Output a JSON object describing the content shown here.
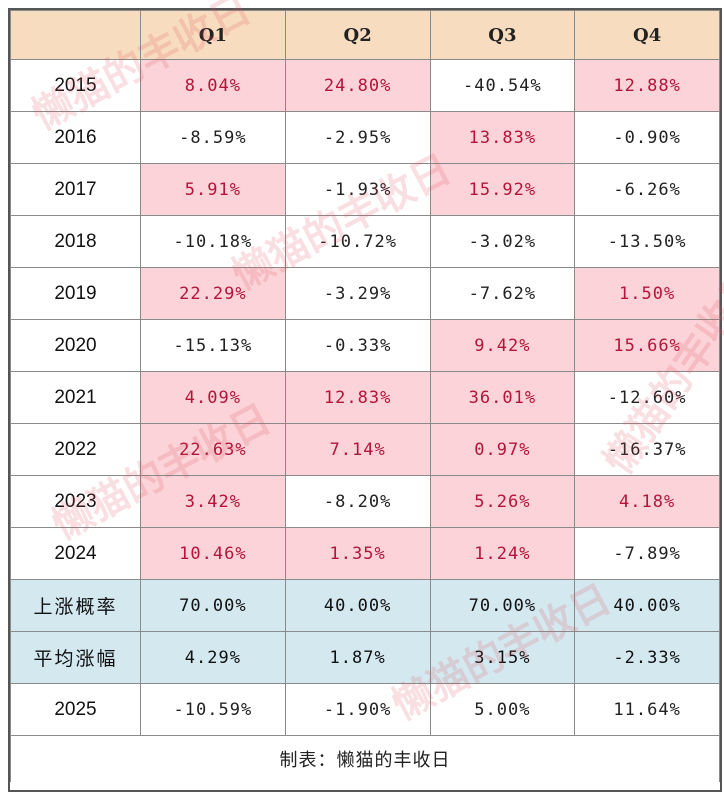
{
  "table": {
    "headers": [
      "",
      "Q1",
      "Q2",
      "Q3",
      "Q4"
    ],
    "rows": [
      {
        "year": "2015",
        "cells": [
          {
            "v": "8.04%",
            "pos": true
          },
          {
            "v": "24.80%",
            "pos": true
          },
          {
            "v": "-40.54%",
            "pos": false
          },
          {
            "v": "12.88%",
            "pos": true
          }
        ]
      },
      {
        "year": "2016",
        "cells": [
          {
            "v": "-8.59%",
            "pos": false
          },
          {
            "v": "-2.95%",
            "pos": false
          },
          {
            "v": "13.83%",
            "pos": true
          },
          {
            "v": "-0.90%",
            "pos": false
          }
        ]
      },
      {
        "year": "2017",
        "cells": [
          {
            "v": "5.91%",
            "pos": true
          },
          {
            "v": "-1.93%",
            "pos": false
          },
          {
            "v": "15.92%",
            "pos": true
          },
          {
            "v": "-6.26%",
            "pos": false
          }
        ]
      },
      {
        "year": "2018",
        "cells": [
          {
            "v": "-10.18%",
            "pos": false
          },
          {
            "v": "-10.72%",
            "pos": false
          },
          {
            "v": "-3.02%",
            "pos": false
          },
          {
            "v": "-13.50%",
            "pos": false
          }
        ]
      },
      {
        "year": "2019",
        "cells": [
          {
            "v": "22.29%",
            "pos": true
          },
          {
            "v": "-3.29%",
            "pos": false
          },
          {
            "v": "-7.62%",
            "pos": false
          },
          {
            "v": "1.50%",
            "pos": true
          }
        ]
      },
      {
        "year": "2020",
        "cells": [
          {
            "v": "-15.13%",
            "pos": false
          },
          {
            "v": "-0.33%",
            "pos": false
          },
          {
            "v": "9.42%",
            "pos": true
          },
          {
            "v": "15.66%",
            "pos": true
          }
        ]
      },
      {
        "year": "2021",
        "cells": [
          {
            "v": "4.09%",
            "pos": true
          },
          {
            "v": "12.83%",
            "pos": true
          },
          {
            "v": "36.01%",
            "pos": true
          },
          {
            "v": "-12.60%",
            "pos": false
          }
        ]
      },
      {
        "year": "2022",
        "cells": [
          {
            "v": "22.63%",
            "pos": true
          },
          {
            "v": "7.14%",
            "pos": true
          },
          {
            "v": "0.97%",
            "pos": true
          },
          {
            "v": "-16.37%",
            "pos": false
          }
        ]
      },
      {
        "year": "2023",
        "cells": [
          {
            "v": "3.42%",
            "pos": true
          },
          {
            "v": "-8.20%",
            "pos": false
          },
          {
            "v": "5.26%",
            "pos": true
          },
          {
            "v": "4.18%",
            "pos": true
          }
        ]
      },
      {
        "year": "2024",
        "cells": [
          {
            "v": "10.46%",
            "pos": true
          },
          {
            "v": "1.35%",
            "pos": true
          },
          {
            "v": "1.24%",
            "pos": true
          },
          {
            "v": "-7.89%",
            "pos": false
          }
        ]
      }
    ],
    "stats": [
      {
        "label": "上涨概率",
        "cells": [
          "70.00%",
          "40.00%",
          "70.00%",
          "40.00%"
        ]
      },
      {
        "label": "平均涨幅",
        "cells": [
          "4.29%",
          "1.87%",
          "3.15%",
          "-2.33%"
        ]
      }
    ],
    "current": {
      "year": "2025",
      "cells": [
        "-10.59%",
        "-1.90%",
        "5.00%",
        "11.64%"
      ]
    },
    "footer": "制表：懒猫的丰收日"
  },
  "watermark": "懒猫的丰收日",
  "colors": {
    "header_bg": "#f8dcc0",
    "positive_bg": "#fbd3d8",
    "positive_text": "#b3153a",
    "stat_bg": "#d4e8f0"
  }
}
